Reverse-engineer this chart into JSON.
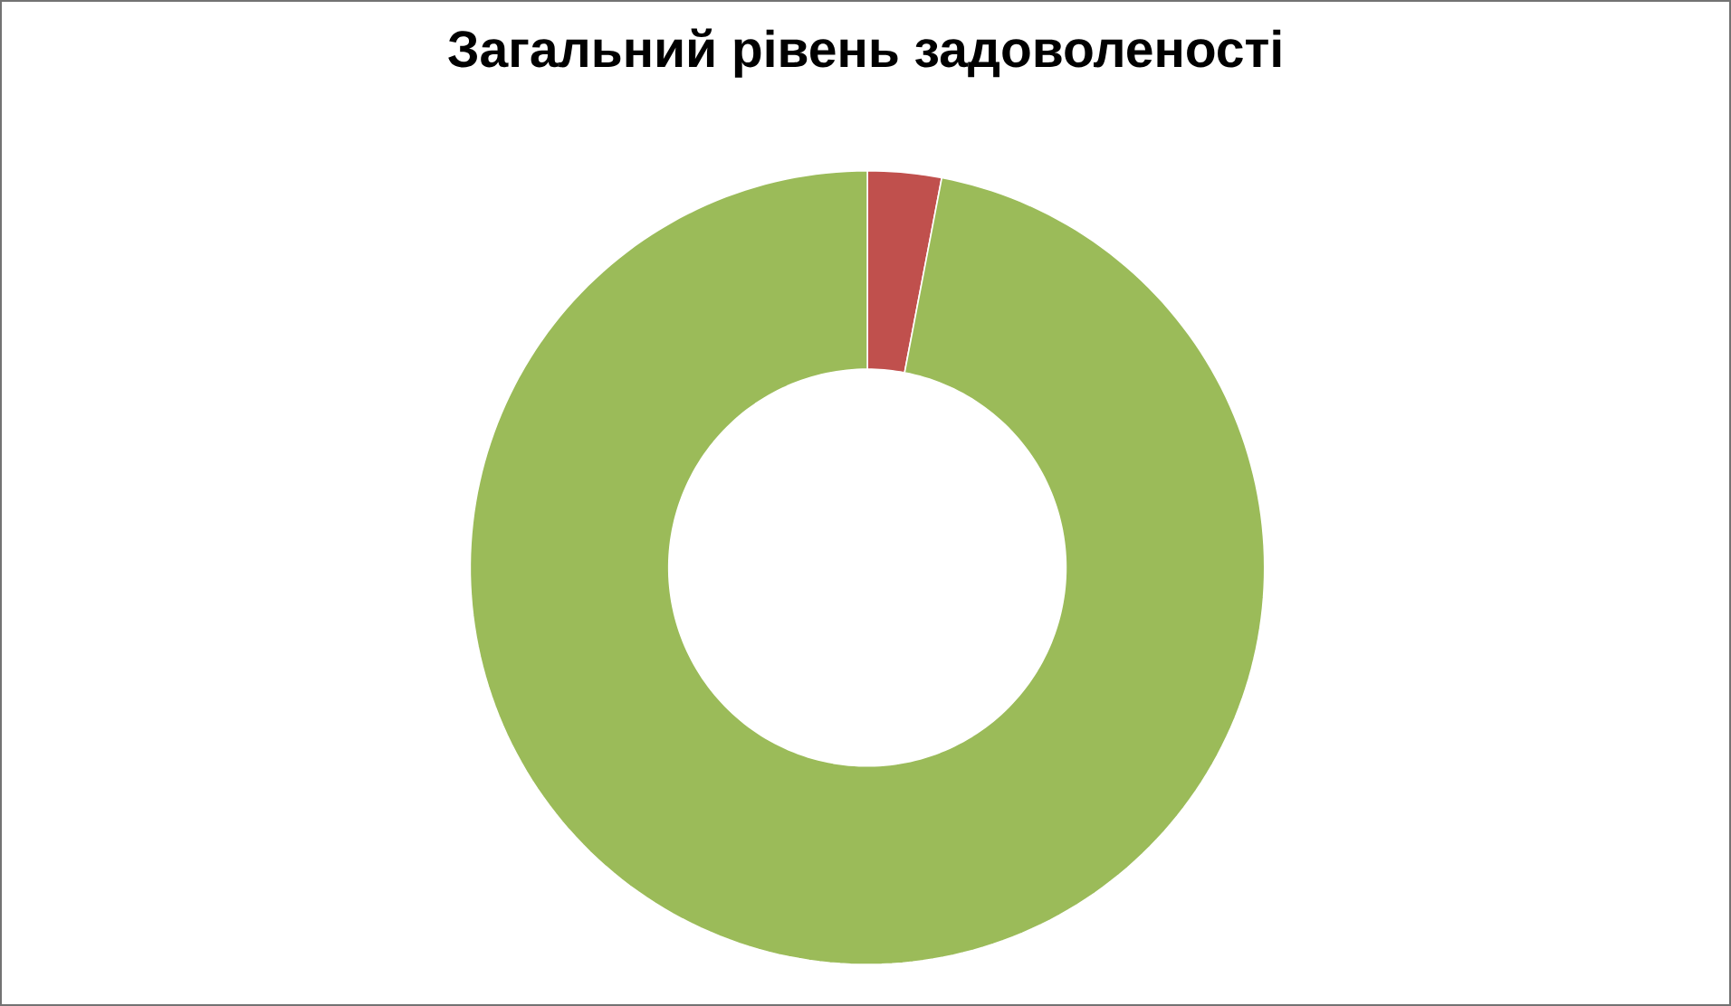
{
  "chart_data": {
    "type": "donut",
    "title": "Загальний рівень задоволеності",
    "categories": [
      null,
      null
    ],
    "values": [
      3,
      97
    ],
    "colors": [
      "#c0504d",
      "#9bbb59"
    ]
  }
}
